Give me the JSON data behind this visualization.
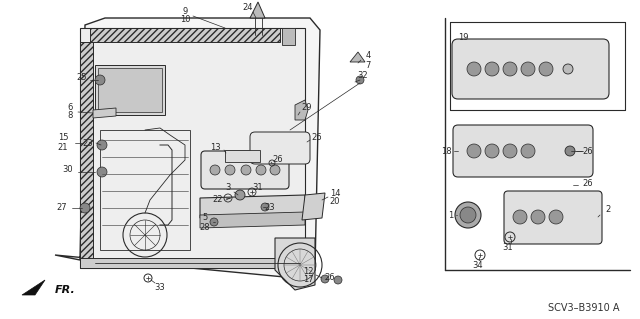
{
  "bg_color": "#ffffff",
  "line_color": "#2a2a2a",
  "title_code": "SCV3–B3910 A",
  "fr_label": "FR.",
  "figsize": [
    6.4,
    3.19
  ],
  "dpi": 100
}
